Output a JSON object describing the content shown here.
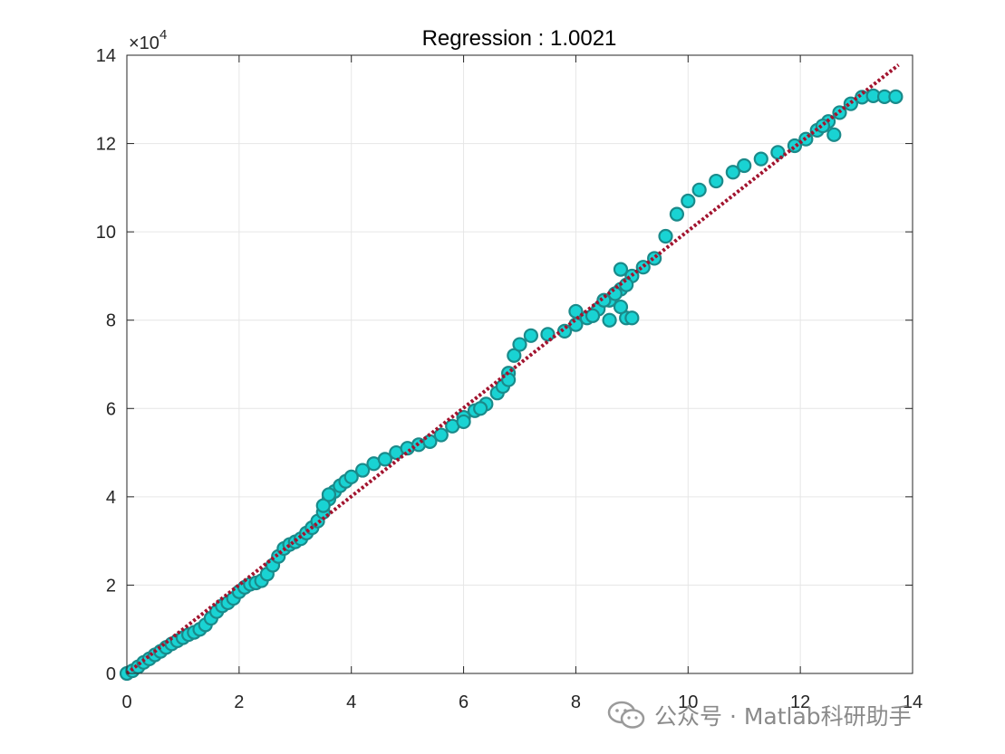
{
  "chart_data": {
    "type": "scatter",
    "title": "Regression :   1.0021",
    "xlabel": "",
    "ylabel": "",
    "xlim": [
      0,
      14
    ],
    "ylim": [
      0,
      140000
    ],
    "x_ticks": [
      "0",
      "2",
      "4",
      "6",
      "8",
      "10",
      "12",
      "14"
    ],
    "y_ticks": [
      "0",
      "2",
      "4",
      "6",
      "8",
      "10",
      "12",
      "14"
    ],
    "y_exponent_prefix": "×10",
    "y_exponent": "4",
    "grid": true,
    "colors": {
      "marker_fill": "#19d3d3",
      "marker_edge": "#1a8a8a",
      "fit_line": "#a2142f"
    },
    "series": [
      {
        "kind": "scatter",
        "points": [
          [
            0.0,
            0
          ],
          [
            0.1,
            600
          ],
          [
            0.2,
            1500
          ],
          [
            0.3,
            2500
          ],
          [
            0.4,
            3300
          ],
          [
            0.5,
            4200
          ],
          [
            0.6,
            5000
          ],
          [
            0.7,
            5900
          ],
          [
            0.8,
            6700
          ],
          [
            0.9,
            7400
          ],
          [
            1.0,
            8100
          ],
          [
            1.1,
            8800
          ],
          [
            1.2,
            9300
          ],
          [
            1.3,
            10000
          ],
          [
            1.4,
            11000
          ],
          [
            1.5,
            12500
          ],
          [
            1.6,
            14000
          ],
          [
            1.7,
            15300
          ],
          [
            1.8,
            16000
          ],
          [
            1.9,
            17000
          ],
          [
            2.0,
            18500
          ],
          [
            2.1,
            19500
          ],
          [
            2.2,
            20200
          ],
          [
            2.3,
            20500
          ],
          [
            2.4,
            21000
          ],
          [
            2.5,
            22500
          ],
          [
            2.6,
            24500
          ],
          [
            2.7,
            26500
          ],
          [
            2.8,
            28300
          ],
          [
            2.9,
            29200
          ],
          [
            3.0,
            29800
          ],
          [
            3.1,
            30500
          ],
          [
            3.2,
            31800
          ],
          [
            3.3,
            33000
          ],
          [
            3.4,
            34500
          ],
          [
            3.5,
            36500
          ],
          [
            3.6,
            39500
          ],
          [
            3.7,
            41200
          ],
          [
            3.8,
            42500
          ],
          [
            3.9,
            43500
          ],
          [
            4.0,
            44500
          ],
          [
            4.2,
            46000
          ],
          [
            4.4,
            47500
          ],
          [
            4.6,
            48500
          ],
          [
            4.8,
            50000
          ],
          [
            5.0,
            51000
          ],
          [
            5.2,
            51800
          ],
          [
            5.4,
            52500
          ],
          [
            5.6,
            54000
          ],
          [
            5.8,
            56000
          ],
          [
            6.0,
            58000
          ],
          [
            6.2,
            59500
          ],
          [
            6.4,
            61000
          ],
          [
            6.6,
            63500
          ],
          [
            6.8,
            68000
          ],
          [
            6.9,
            72000
          ],
          [
            7.0,
            74500
          ],
          [
            7.2,
            76500
          ],
          [
            7.5,
            76800
          ],
          [
            7.8,
            77500
          ],
          [
            8.0,
            79000
          ],
          [
            8.2,
            80500
          ],
          [
            8.4,
            82500
          ],
          [
            8.6,
            84500
          ],
          [
            8.8,
            87000
          ],
          [
            9.0,
            90000
          ],
          [
            9.2,
            92000
          ],
          [
            9.4,
            94000
          ],
          [
            9.6,
            99000
          ],
          [
            9.8,
            104000
          ],
          [
            10.0,
            107000
          ],
          [
            10.2,
            109500
          ],
          [
            10.5,
            111500
          ],
          [
            10.8,
            113500
          ],
          [
            11.0,
            115000
          ],
          [
            11.3,
            116500
          ],
          [
            11.6,
            118000
          ],
          [
            11.9,
            119500
          ],
          [
            12.1,
            121000
          ],
          [
            12.3,
            123000
          ],
          [
            12.5,
            125000
          ],
          [
            12.7,
            127000
          ],
          [
            12.9,
            129000
          ],
          [
            13.1,
            130500
          ],
          [
            13.3,
            130800
          ],
          [
            13.5,
            130600
          ],
          [
            13.7,
            130600
          ],
          [
            8.0,
            82000
          ],
          [
            8.3,
            81000
          ],
          [
            8.6,
            80000
          ],
          [
            8.9,
            80500
          ],
          [
            9.0,
            80500
          ],
          [
            8.8,
            83000
          ],
          [
            8.5,
            84500
          ],
          [
            8.7,
            86000
          ],
          [
            8.9,
            88000
          ],
          [
            8.8,
            91500
          ],
          [
            6.0,
            57000
          ],
          [
            6.3,
            60000
          ],
          [
            6.7,
            65000
          ],
          [
            6.8,
            66500
          ],
          [
            3.5,
            38000
          ],
          [
            3.6,
            40500
          ],
          [
            12.4,
            124000
          ],
          [
            12.6,
            122000
          ]
        ]
      },
      {
        "kind": "line",
        "style": "dotted",
        "points": [
          [
            0,
            0
          ],
          [
            13.75,
            137800
          ]
        ]
      }
    ]
  },
  "watermark": {
    "text": "公众号 · Matlab科研助手",
    "icon": "wechat-icon"
  }
}
